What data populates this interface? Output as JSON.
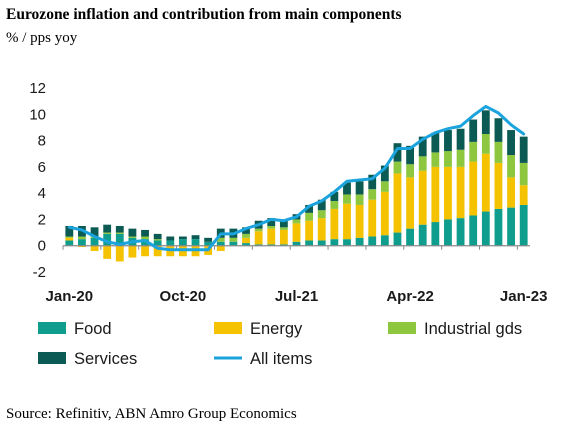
{
  "title": "Eurozone inflation and contribution from main components",
  "subtitle": "% / pps yoy",
  "source": "Source: Refinitiv, ABN Amro Group Economics",
  "chart_data": {
    "type": "bar",
    "stacked": true,
    "ylim": [
      -2,
      12
    ],
    "yticks": [
      "-2",
      "0",
      "2",
      "4",
      "6",
      "8",
      "10",
      "12"
    ],
    "ytick_values": [
      -2,
      0,
      2,
      4,
      6,
      8,
      10,
      12
    ],
    "categories": [
      "Jan-20",
      "Feb-20",
      "Mar-20",
      "Apr-20",
      "May-20",
      "Jun-20",
      "Jul-20",
      "Aug-20",
      "Sep-20",
      "Oct-20",
      "Nov-20",
      "Dec-20",
      "Jan-21",
      "Feb-21",
      "Mar-21",
      "Apr-21",
      "May-21",
      "Jun-21",
      "Jul-21",
      "Aug-21",
      "Sep-21",
      "Oct-21",
      "Nov-21",
      "Dec-21",
      "Jan-22",
      "Feb-22",
      "Mar-22",
      "Apr-22",
      "May-22",
      "Jun-22",
      "Jul-22",
      "Aug-22",
      "Sep-22",
      "Oct-22",
      "Nov-22",
      "Dec-22",
      "Jan-23"
    ],
    "xtick_labels": [
      {
        "index": 0,
        "label": "Jan-20"
      },
      {
        "index": 9,
        "label": "Oct-20"
      },
      {
        "index": 18,
        "label": "Jul-21"
      },
      {
        "index": 27,
        "label": "Apr-22"
      },
      {
        "index": 36,
        "label": "Jan-23"
      }
    ],
    "series": [
      {
        "name": "Food",
        "color": "#0f9e8e",
        "kind": "bar",
        "values": [
          0.4,
          0.5,
          0.6,
          0.9,
          0.9,
          0.6,
          0.5,
          0.4,
          0.4,
          0.5,
          0.5,
          0.3,
          0.3,
          0.3,
          0.2,
          0.1,
          0.1,
          0.1,
          0.3,
          0.4,
          0.4,
          0.5,
          0.5,
          0.6,
          0.7,
          0.8,
          1.0,
          1.3,
          1.6,
          1.8,
          2.0,
          2.1,
          2.3,
          2.6,
          2.8,
          2.9,
          3.1
        ]
      },
      {
        "name": "Energy",
        "color": "#f5c200",
        "kind": "bar",
        "values": [
          0.2,
          -0.1,
          -0.4,
          -1.0,
          -1.2,
          -0.9,
          -0.8,
          -0.8,
          -0.8,
          -0.8,
          -0.8,
          -0.7,
          -0.4,
          0.0,
          0.4,
          1.0,
          1.2,
          1.1,
          1.4,
          1.5,
          1.7,
          2.3,
          2.7,
          2.5,
          2.8,
          3.3,
          4.5,
          3.9,
          4.1,
          4.2,
          4.0,
          3.9,
          4.1,
          4.4,
          3.5,
          2.3,
          1.5
        ]
      },
      {
        "name": "Industrial gds",
        "color": "#8dc63f",
        "kind": "bar",
        "values": [
          0.1,
          0.2,
          0.1,
          0.1,
          0.1,
          0.1,
          0.2,
          0.1,
          0.0,
          0.0,
          0.0,
          0.0,
          0.3,
          0.3,
          0.3,
          0.2,
          0.2,
          0.2,
          0.3,
          0.6,
          0.6,
          0.6,
          0.7,
          0.8,
          0.8,
          0.8,
          0.9,
          1.0,
          1.1,
          1.1,
          1.2,
          1.3,
          1.5,
          1.5,
          1.6,
          1.7,
          1.7
        ]
      },
      {
        "name": "Services",
        "color": "#0b5a54",
        "kind": "bar",
        "values": [
          0.8,
          0.8,
          0.7,
          0.6,
          0.5,
          0.6,
          0.5,
          0.4,
          0.3,
          0.2,
          0.3,
          0.3,
          0.7,
          0.7,
          0.5,
          0.6,
          0.6,
          0.5,
          0.4,
          0.6,
          0.8,
          0.7,
          0.9,
          1.0,
          1.1,
          1.2,
          1.4,
          1.4,
          1.5,
          1.5,
          1.6,
          1.6,
          1.7,
          1.8,
          1.8,
          1.9,
          2.0
        ]
      },
      {
        "name": "All items",
        "color": "#1aa3dc",
        "kind": "line",
        "values": [
          1.4,
          1.2,
          0.7,
          0.3,
          0.1,
          0.3,
          0.4,
          -0.2,
          -0.3,
          -0.3,
          -0.3,
          -0.3,
          0.9,
          0.9,
          1.3,
          1.6,
          2.0,
          1.9,
          2.2,
          3.0,
          3.4,
          4.1,
          4.9,
          5.0,
          5.1,
          5.9,
          7.4,
          7.4,
          8.1,
          8.6,
          8.9,
          9.1,
          9.9,
          10.6,
          10.1,
          9.2,
          8.5
        ]
      }
    ],
    "legend": {
      "placement": "bottom",
      "columns": 3
    }
  }
}
